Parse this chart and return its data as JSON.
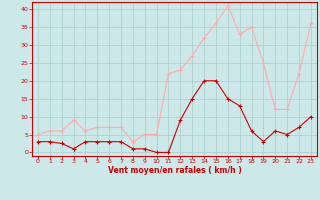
{
  "x": [
    0,
    1,
    2,
    3,
    4,
    5,
    6,
    7,
    8,
    9,
    10,
    11,
    12,
    13,
    14,
    15,
    16,
    17,
    18,
    19,
    20,
    21,
    22,
    23
  ],
  "wind_avg": [
    3,
    3,
    2.5,
    1,
    3,
    3,
    3,
    3,
    1,
    1,
    0,
    0,
    9,
    15,
    20,
    20,
    15,
    13,
    6,
    3,
    6,
    5,
    7,
    10
  ],
  "wind_gust": [
    5,
    6,
    6,
    9,
    6,
    7,
    7,
    7,
    3,
    5,
    5,
    22,
    23,
    27,
    32,
    36,
    41,
    33,
    35,
    25,
    12,
    12,
    22,
    36
  ],
  "avg_color": "#cc0000",
  "gust_color": "#ffaaaa",
  "bg_color": "#cce8e8",
  "grid_color": "#aacccc",
  "axis_color": "#cc0000",
  "xlabel": "Vent moyen/en rafales ( km/h )",
  "xlabel_color": "#cc0000",
  "ylim": [
    -1,
    42
  ],
  "yticks": [
    0,
    5,
    10,
    15,
    20,
    25,
    30,
    35,
    40
  ],
  "xticks": [
    0,
    1,
    2,
    3,
    4,
    5,
    6,
    7,
    8,
    9,
    10,
    11,
    12,
    13,
    14,
    15,
    16,
    17,
    18,
    19,
    20,
    21,
    22,
    23
  ],
  "xlim": [
    -0.5,
    23.5
  ]
}
